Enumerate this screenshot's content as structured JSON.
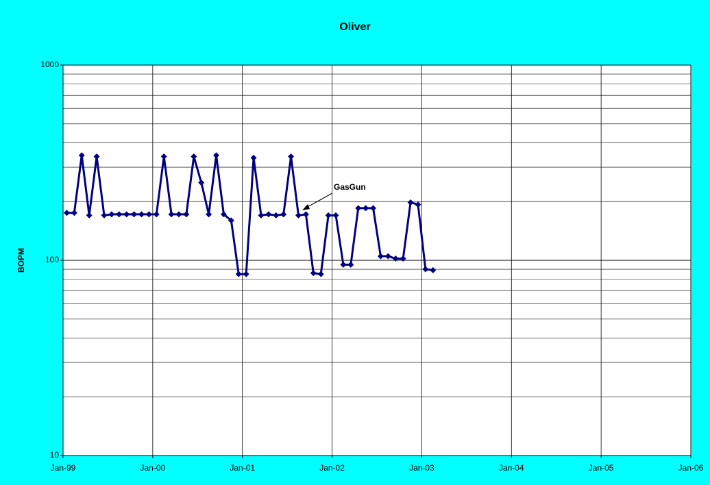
{
  "chart_data": {
    "type": "line",
    "title": "Oliver",
    "y_label": "BOPM",
    "log_y": true,
    "grid": true,
    "annotations": [
      "GasGun"
    ],
    "x": [
      "1999-01",
      "1999-02",
      "1999-03",
      "1999-04",
      "1999-05",
      "1999-06",
      "1999-07",
      "1999-08",
      "1999-09",
      "1999-10",
      "1999-11",
      "1999-12",
      "2000-01",
      "2000-02",
      "2000-03",
      "2000-04",
      "2000-05",
      "2000-06",
      "2000-07",
      "2000-08",
      "2000-09",
      "2000-10",
      "2000-11",
      "2000-12",
      "2001-01",
      "2001-02",
      "2001-03",
      "2001-04",
      "2001-05",
      "2001-06",
      "2001-07",
      "2001-08",
      "2001-09",
      "2001-10",
      "2001-11",
      "2001-12",
      "2002-01",
      "2002-02",
      "2002-03",
      "2002-04",
      "2002-05",
      "2002-06",
      "2002-07",
      "2002-08",
      "2002-09",
      "2002-10",
      "2002-11",
      "2002-12",
      "2003-01",
      "2003-02"
    ],
    "series": [
      {
        "name": "BOPM",
        "color": "#000080",
        "values": [
          175,
          175,
          345,
          170,
          340,
          170,
          172,
          172,
          172,
          172,
          172,
          172,
          172,
          340,
          172,
          172,
          172,
          340,
          250,
          172,
          345,
          172,
          160,
          85,
          85,
          335,
          170,
          172,
          170,
          172,
          340,
          170,
          172,
          86,
          85,
          170,
          170,
          95,
          95,
          185,
          185,
          185,
          105,
          105,
          102,
          102,
          198,
          193,
          90,
          89
        ]
      }
    ],
    "xlim": [
      "1999-01",
      "2006-01"
    ],
    "xticks": [
      {
        "value": "1999-01",
        "label": "Jan-99"
      },
      {
        "value": "2000-01",
        "label": "Jan-00"
      },
      {
        "value": "2001-01",
        "label": "Jan-01"
      },
      {
        "value": "2002-01",
        "label": "Jan-02"
      },
      {
        "value": "2003-01",
        "label": "Jan-03"
      },
      {
        "value": "2004-01",
        "label": "Jan-04"
      },
      {
        "value": "2005-01",
        "label": "Jan-05"
      },
      {
        "value": "2006-01",
        "label": "Jan-06"
      }
    ],
    "ylim": [
      10,
      1000
    ],
    "yticks": [
      10,
      100,
      1000
    ]
  }
}
